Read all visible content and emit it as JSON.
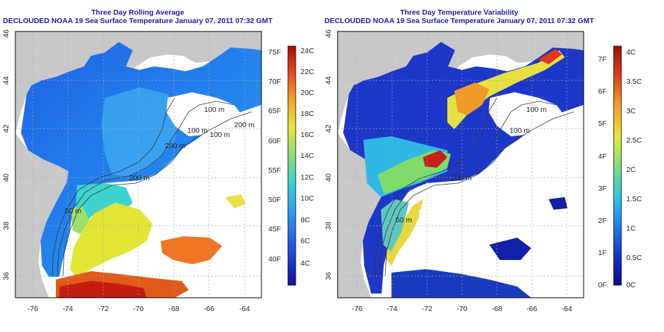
{
  "left_map": {
    "title": "Three Day Rolling Average",
    "subtitle": "DECLOUDED NOAA 19 Sea Surface Temperature January 07, 2011 07:32 GMT",
    "lon_ticks": [
      "-76",
      "-74",
      "-72",
      "-70",
      "-68",
      "-66",
      "-64"
    ],
    "lat_ticks": [
      "36",
      "38",
      "40",
      "42",
      "44",
      "46"
    ],
    "contours": [
      "100 m",
      "200 m",
      "200 m",
      "100 m",
      "200 m",
      "100 m",
      "50 m"
    ],
    "colorbar": {
      "f_labels": [
        "75F",
        "70F",
        "65F",
        "60F",
        "55F",
        "50F",
        "45F",
        "40F"
      ],
      "c_labels": [
        "24C",
        "22C",
        "20C",
        "18C",
        "16C",
        "14C",
        "12C",
        "10C",
        "8C",
        "6C",
        "4C"
      ]
    }
  },
  "right_map": {
    "title": "Three Day Temperature Variability",
    "subtitle": "DECLOUDED NOAA 19 Sea Surface Temperature January 07, 2011 07:32 GMT",
    "lon_ticks": [
      "-76",
      "-74",
      "-72",
      "-70",
      "-68",
      "-66",
      "-64"
    ],
    "lat_ticks": [
      "36",
      "38",
      "40",
      "42",
      "44",
      "46"
    ],
    "contours": [
      "100 m",
      "100 m",
      "200 m",
      "50 m"
    ],
    "colorbar": {
      "f_labels": [
        "7F",
        "6F",
        "5F",
        "4F",
        "3F",
        "2F",
        "1F",
        "0F"
      ],
      "c_labels": [
        "4C",
        "3.5C",
        "3C",
        "2.5C",
        "2C",
        "1.5C",
        "1C",
        "0.5C",
        "0C"
      ]
    }
  },
  "colors": {
    "land": "#c8c8c8",
    "title_blue": "#1a1aa6",
    "grid": "#aaaaaa"
  }
}
